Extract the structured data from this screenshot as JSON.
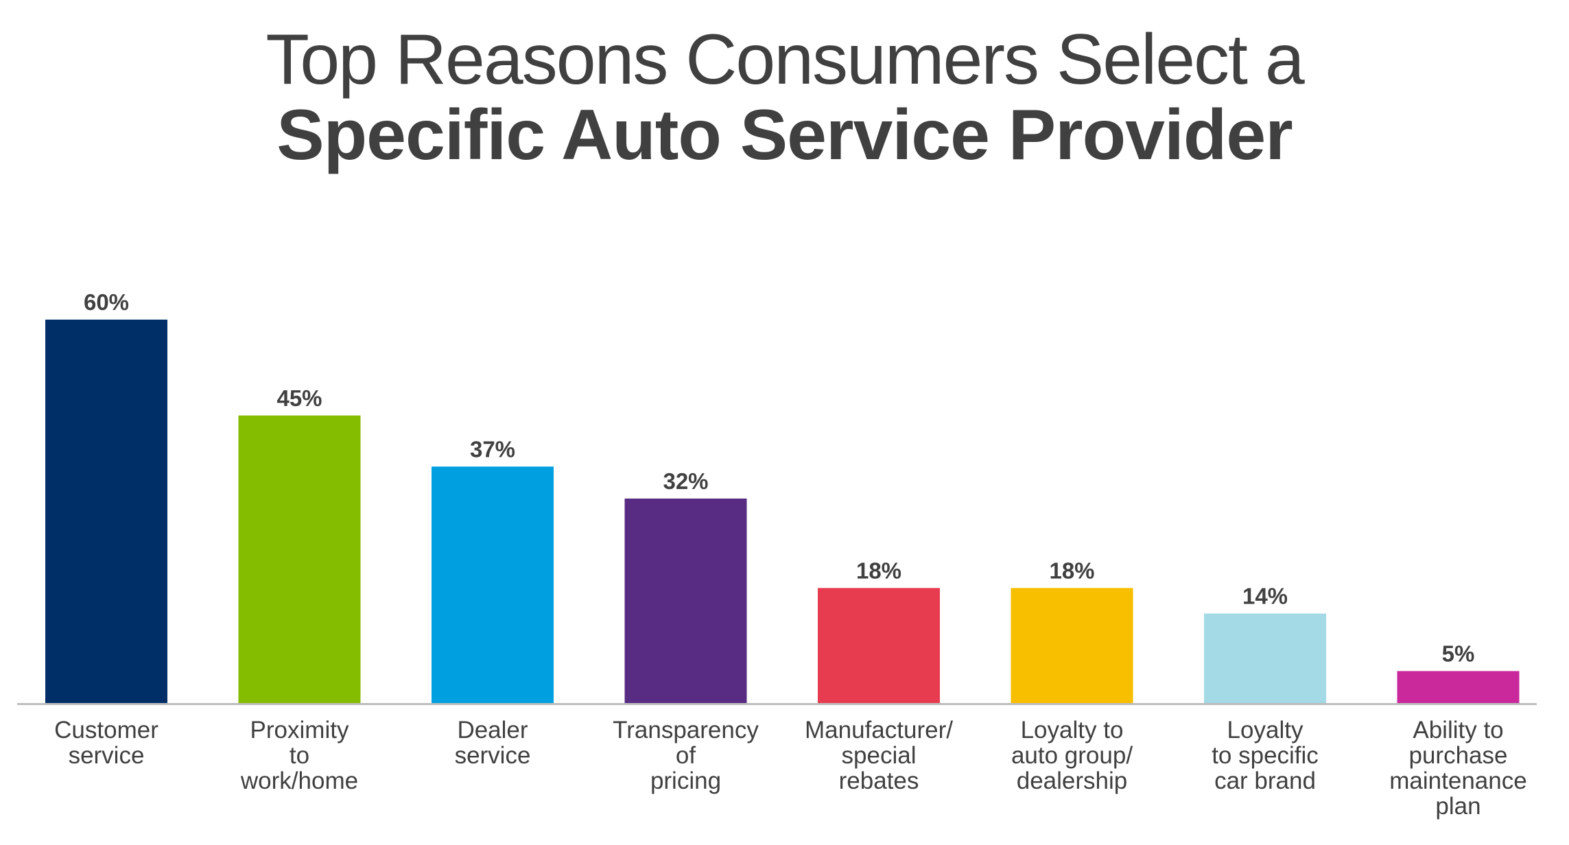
{
  "chart_data": {
    "type": "bar",
    "title_line1": "Top Reasons Consumers Select a",
    "title_line2": "Specific Auto Service Provider",
    "categories": [
      [
        "Customer",
        "service"
      ],
      [
        "Proximity",
        "to",
        "work/home"
      ],
      [
        "Dealer",
        "service"
      ],
      [
        "Transparency",
        "of",
        "pricing"
      ],
      [
        "Manufacturer/",
        "special",
        "rebates"
      ],
      [
        "Loyalty to",
        "auto group/",
        "dealership"
      ],
      [
        "Loyalty",
        "to specific",
        "car brand"
      ],
      [
        "Ability to",
        "purchase",
        "maintenance",
        "plan"
      ]
    ],
    "values": [
      60,
      45,
      37,
      32,
      18,
      18,
      14,
      5
    ],
    "value_labels": [
      "60%",
      "45%",
      "37%",
      "32%",
      "18%",
      "18%",
      "14%",
      "5%"
    ],
    "colors": [
      "#002F67",
      "#84BC00",
      "#009FDF",
      "#582C83",
      "#E73C50",
      "#F8BE00",
      "#A4D9E6",
      "#C9299B"
    ],
    "unit": "%",
    "ylim": [
      0,
      60
    ],
    "grid": false,
    "legend": "none",
    "axis_color": "#BDBDBD",
    "text_color": "#404040"
  }
}
